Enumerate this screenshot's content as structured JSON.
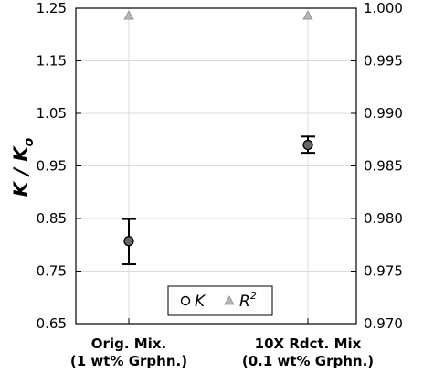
{
  "chart_data": {
    "type": "scatter",
    "categories": [
      [
        "Orig. Mix.",
        "(1 wt% Grphn.)"
      ],
      [
        "10X Rdct. Mix",
        "(0.1 wt% Grphn.)"
      ]
    ],
    "ylabel": "K / K",
    "ylabel_sub": "o",
    "ylim": [
      0.65,
      1.25
    ],
    "yticks": [
      "0.65",
      "0.75",
      "0.85",
      "0.95",
      "1.05",
      "1.15",
      "1.25"
    ],
    "y2lim": [
      0.97,
      1.0
    ],
    "y2ticks": [
      "0.970",
      "0.975",
      "0.980",
      "0.985",
      "0.990",
      "0.995",
      "1.000"
    ],
    "grid": true,
    "series": [
      {
        "name": "K",
        "marker": "circle",
        "axis": "left",
        "color": "#666666",
        "values": [
          0.807,
          0.99
        ],
        "error_low": [
          0.763,
          0.975
        ],
        "error_high": [
          0.849,
          1.006
        ]
      },
      {
        "name": "R",
        "name_sup": "2",
        "marker": "triangle",
        "axis": "right",
        "color": "#999999",
        "values": [
          0.9993,
          0.9993
        ]
      }
    ],
    "legend": {
      "placement": "bottom-center"
    }
  }
}
